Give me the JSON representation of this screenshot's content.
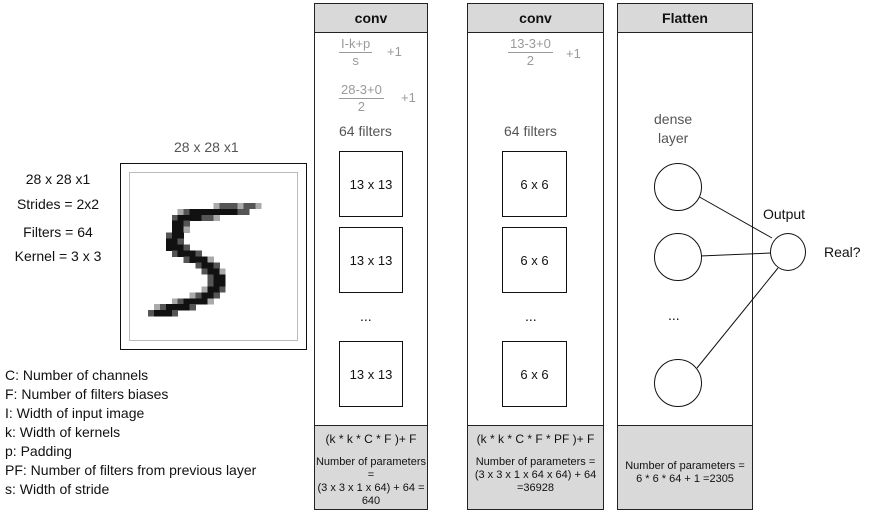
{
  "input": {
    "title": "28 x 28 x1",
    "params": [
      "28 x 28 x1",
      "Strides = 2x2",
      "Filters = 64",
      "Kernel = 3 x 3"
    ]
  },
  "legend": [
    "C: Number of channels",
    "F: Number of filters biases",
    "I: Width of input image",
    "k: Width of kernels",
    "p: Padding",
    "PF: Number of filters from previous layer",
    "s: Width of stride"
  ],
  "conv1": {
    "header": "conv",
    "formula1": {
      "num": "I-k+p",
      "den": "s",
      "plus": "+1"
    },
    "formula2": {
      "num": "28-3+0",
      "den": "2",
      "plus": "+1"
    },
    "filters_label": "64 filters",
    "maps": [
      "13 x 13",
      "13 x 13",
      "13 x 13"
    ],
    "dots": "...",
    "footer_formula": "(k * k * C * F )+ F",
    "footer_params": [
      "Number of parameters =",
      "(3 x 3 x 1 x 64) + 64 =",
      "640"
    ]
  },
  "conv2": {
    "header": "conv",
    "formula1": {
      "num": "13-3+0",
      "den": "2",
      "plus": "+1"
    },
    "filters_label": "64 filters",
    "maps": [
      "6 x 6",
      "6 x 6",
      "6 x 6"
    ],
    "dots": "...",
    "footer_formula": "(k * k * C * F * PF )+ F",
    "footer_params": [
      "Number of parameters =",
      "(3 x 3 x 1 x 64 x 64) + 64",
      "=36928"
    ]
  },
  "flatten": {
    "header": "Flatten",
    "dense_label": [
      "dense",
      "layer"
    ],
    "dots": "...",
    "footer_params": [
      "Number of parameters =",
      "6 * 6 * 64 + 1 =2305"
    ]
  },
  "output": {
    "label": "Output",
    "result": "Real?"
  },
  "colors": {
    "header_bg": "#d9d9d9",
    "formula_grey": "#9a9a9a",
    "filters_label": "#555555"
  }
}
